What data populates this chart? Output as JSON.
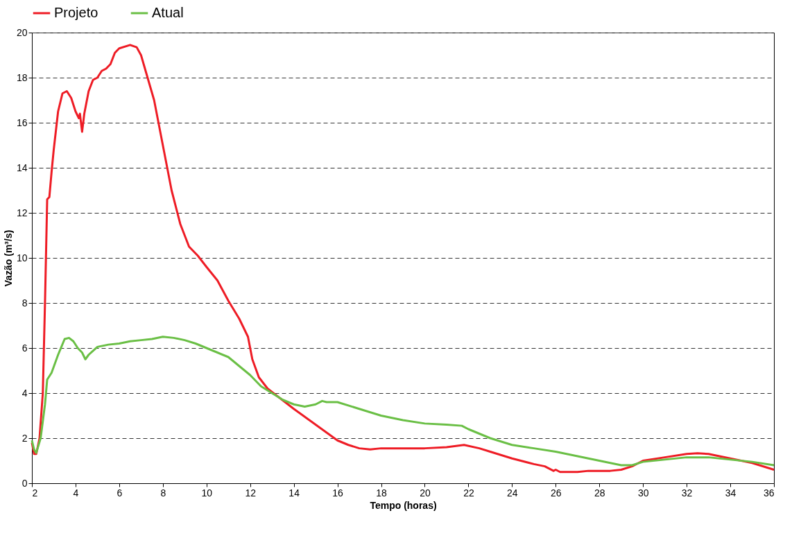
{
  "chart_data": {
    "type": "line",
    "xlabel": "Tempo (horas)",
    "ylabel": "Vazão (m³/s)",
    "xlim": [
      2,
      36
    ],
    "xticks": [
      2,
      4,
      6,
      8,
      10,
      12,
      14,
      16,
      18,
      20,
      22,
      24,
      26,
      28,
      30,
      32,
      34,
      36
    ],
    "ylim": [
      0,
      20
    ],
    "yticks": [
      0,
      2,
      4,
      6,
      8,
      10,
      12,
      14,
      16,
      18,
      20
    ],
    "grid": "y",
    "legend": "top",
    "marker": "none",
    "line_style": "solid",
    "series": [
      {
        "name": "Projeto",
        "color": "#ee1c25",
        "x": [
          2.0,
          2.1,
          2.2,
          2.35,
          2.5,
          2.6,
          2.7,
          2.8,
          2.9,
          3.0,
          3.2,
          3.4,
          3.6,
          3.8,
          4.0,
          4.15,
          4.2,
          4.3,
          4.4,
          4.6,
          4.8,
          5.0,
          5.2,
          5.4,
          5.6,
          5.8,
          6.0,
          6.5,
          6.8,
          7.0,
          7.3,
          7.6,
          8.0,
          8.4,
          8.8,
          9.2,
          9.6,
          10.0,
          10.5,
          11.0,
          11.5,
          11.9,
          12.1,
          12.4,
          12.8,
          13.2,
          14.0,
          15.0,
          16.0,
          16.5,
          17.0,
          17.5,
          18,
          19,
          20,
          21,
          21.8,
          22.5,
          23,
          24,
          25,
          25.5,
          25.9,
          26,
          26.2,
          27,
          27.5,
          28.5,
          29,
          29.5,
          30,
          31,
          32,
          32.5,
          33,
          34,
          35,
          36
        ],
        "values": [
          1.8,
          1.3,
          1.3,
          2.0,
          4,
          8,
          12.6,
          12.7,
          13.8,
          14.8,
          16.5,
          17.3,
          17.4,
          17.1,
          16.5,
          16.2,
          16.4,
          15.6,
          16.4,
          17.4,
          17.9,
          18.0,
          18.3,
          18.4,
          18.6,
          19.1,
          19.3,
          19.45,
          19.35,
          19.0,
          18.0,
          17.0,
          15.0,
          13.0,
          11.5,
          10.5,
          10.1,
          9.6,
          9.0,
          8.1,
          7.3,
          6.5,
          5.5,
          4.7,
          4.2,
          3.9,
          3.3,
          2.6,
          1.9,
          1.7,
          1.55,
          1.5,
          1.55,
          1.55,
          1.55,
          1.6,
          1.7,
          1.55,
          1.4,
          1.1,
          0.85,
          0.75,
          0.55,
          0.6,
          0.5,
          0.5,
          0.55,
          0.55,
          0.6,
          0.75,
          1.0,
          1.15,
          1.3,
          1.33,
          1.3,
          1.1,
          0.9,
          0.6
        ]
      },
      {
        "name": "Atual",
        "color": "#6abf45",
        "x": [
          2.0,
          2.1,
          2.2,
          2.4,
          2.6,
          2.7,
          2.9,
          3.2,
          3.5,
          3.7,
          3.9,
          4.1,
          4.3,
          4.45,
          4.6,
          5.0,
          5.5,
          6.0,
          6.5,
          7.0,
          7.5,
          8,
          8.5,
          9,
          9.5,
          10,
          10.5,
          11,
          11.5,
          12,
          12.5,
          13,
          13.5,
          14,
          14.5,
          15,
          15.3,
          15.5,
          16,
          17,
          18,
          19,
          20,
          21,
          21.7,
          22,
          23,
          24,
          25,
          26,
          27,
          28,
          29,
          29.5,
          30,
          31,
          32,
          33,
          34,
          35,
          36
        ],
        "values": [
          1.9,
          1.5,
          1.35,
          2.0,
          3.5,
          4.6,
          4.9,
          5.7,
          6.4,
          6.45,
          6.3,
          6.0,
          5.8,
          5.5,
          5.7,
          6.05,
          6.15,
          6.2,
          6.3,
          6.35,
          6.4,
          6.5,
          6.45,
          6.35,
          6.2,
          6.0,
          5.8,
          5.6,
          5.2,
          4.8,
          4.3,
          4.0,
          3.7,
          3.5,
          3.4,
          3.5,
          3.65,
          3.6,
          3.6,
          3.3,
          3.0,
          2.8,
          2.65,
          2.6,
          2.55,
          2.4,
          2.0,
          1.7,
          1.55,
          1.4,
          1.2,
          1.0,
          0.8,
          0.8,
          0.95,
          1.05,
          1.15,
          1.15,
          1.05,
          0.95,
          0.8
        ]
      }
    ]
  }
}
